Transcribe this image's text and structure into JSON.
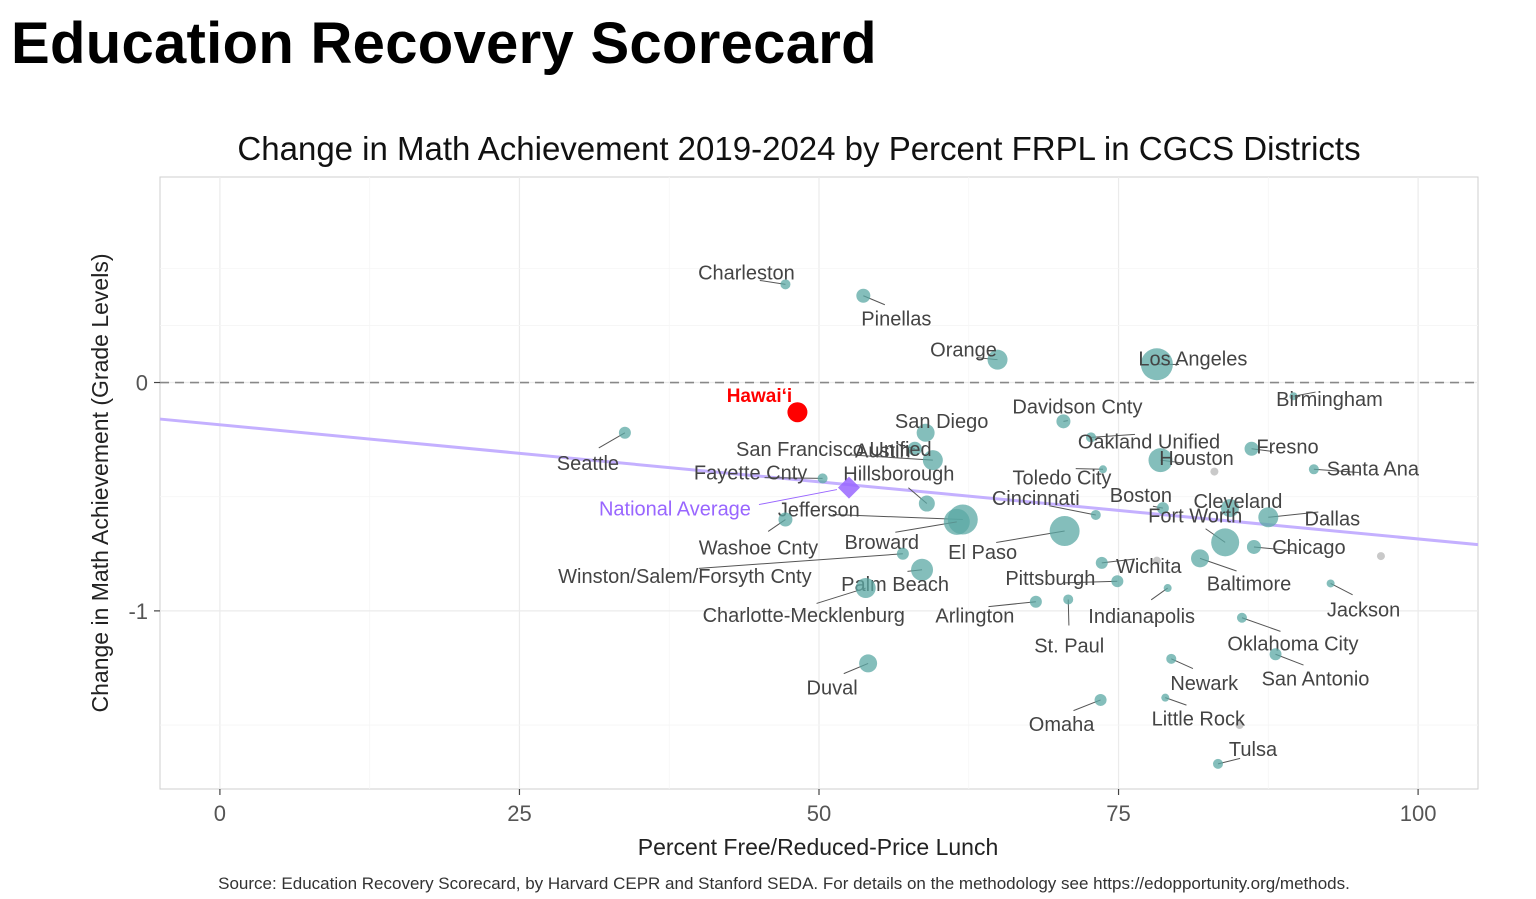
{
  "page": {
    "title": "Education Recovery Scorecard"
  },
  "chart_data": {
    "type": "scatter",
    "title": "Change in Math Achievement 2019-2024 by Percent FRPL in CGCS Districts",
    "xlabel": "Percent Free/Reduced-Price Lunch",
    "ylabel": "Change in Math Achievement (Grade Levels)",
    "xlim": [
      -5,
      105
    ],
    "ylim": [
      -1.78,
      0.9
    ],
    "xticks": [
      0,
      25,
      50,
      75,
      100
    ],
    "yticks": [
      0,
      -1
    ],
    "grid": true,
    "source": "Source: Education Recovery Scorecard, by Harvard CEPR and Stanford SEDA. For details on the methodology see https://edopportunity.org/methods.",
    "colors": {
      "district": "#5ba8a4",
      "hawaii": "#ff0000",
      "national": "#9966ff",
      "trend": "#c4b0ff",
      "unlabeled": "#bbbbbb",
      "zero_line": "#888888"
    },
    "trend_line": {
      "x": [
        -5,
        105
      ],
      "y": [
        -0.16,
        -0.71
      ]
    },
    "zero_line": 0,
    "national_average": {
      "label": "National Average",
      "x": 52.5,
      "y": -0.46
    },
    "hawaii": {
      "label": "Hawai‘i",
      "x": 48.2,
      "y": -0.13
    },
    "series": [
      {
        "name": "Charleston",
        "x": 47.2,
        "y": 0.43,
        "size": 5
      },
      {
        "name": "Pinellas",
        "x": 53.7,
        "y": 0.38,
        "size": 7
      },
      {
        "name": "Orange",
        "x": 64.9,
        "y": 0.1,
        "size": 10
      },
      {
        "name": "Los Angeles",
        "x": 78.2,
        "y": 0.08,
        "size": 16
      },
      {
        "name": "Birmingham",
        "x": 89.6,
        "y": -0.06,
        "size": 4
      },
      {
        "name": "Davidson Cnty",
        "x": 70.4,
        "y": -0.17,
        "size": 7
      },
      {
        "name": "Oakland Unified",
        "x": 72.7,
        "y": -0.24,
        "size": 5
      },
      {
        "name": "Fresno",
        "x": 86.1,
        "y": -0.29,
        "size": 7
      },
      {
        "name": "San Diego",
        "x": 58.9,
        "y": -0.22,
        "size": 9
      },
      {
        "name": "Seattle",
        "x": 33.8,
        "y": -0.22,
        "size": 6
      },
      {
        "name": "Austin",
        "x": 58.0,
        "y": -0.29,
        "size": 7
      },
      {
        "name": "San Francisco Unified",
        "x": 59.5,
        "y": -0.34,
        "size": 10
      },
      {
        "name": "Toledo City",
        "x": 73.7,
        "y": -0.38,
        "size": 4
      },
      {
        "name": "Houston",
        "x": 78.5,
        "y": -0.34,
        "size": 12
      },
      {
        "name": "Santa Ana",
        "x": 91.3,
        "y": -0.38,
        "size": 5
      },
      {
        "name": "Fayette Cnty",
        "x": 50.3,
        "y": -0.42,
        "size": 5
      },
      {
        "name": "Hillsborough",
        "x": 59.0,
        "y": -0.53,
        "size": 8
      },
      {
        "name": "Cincinnati",
        "x": 73.1,
        "y": -0.58,
        "size": 5
      },
      {
        "name": "Boston",
        "x": 78.7,
        "y": -0.55,
        "size": 6
      },
      {
        "name": "Cleveland",
        "x": 84.3,
        "y": -0.55,
        "size": 9
      },
      {
        "name": "Dallas",
        "x": 87.5,
        "y": -0.59,
        "size": 10
      },
      {
        "name": "Jefferson",
        "x": 62.0,
        "y": -0.6,
        "size": 15
      },
      {
        "name": "Washoe Cnty",
        "x": 47.2,
        "y": -0.6,
        "size": 7
      },
      {
        "name": "Broward",
        "x": 61.5,
        "y": -0.61,
        "size": 13
      },
      {
        "name": "El Paso",
        "x": 70.5,
        "y": -0.65,
        "size": 15
      },
      {
        "name": "Fort Worth",
        "x": 83.9,
        "y": -0.7,
        "size": 14
      },
      {
        "name": "Chicago",
        "x": 86.3,
        "y": -0.72,
        "size": 7
      },
      {
        "name": "Wichita",
        "x": 73.6,
        "y": -0.79,
        "size": 6
      },
      {
        "name": "Baltimore",
        "x": 81.8,
        "y": -0.77,
        "size": 9
      },
      {
        "name": "Winston/Salem/Forsyth Cnty",
        "x": 57.0,
        "y": -0.75,
        "size": 6
      },
      {
        "name": "Palm Beach",
        "x": 58.6,
        "y": -0.82,
        "size": 11
      },
      {
        "name": "Pittsburgh",
        "x": 74.9,
        "y": -0.87,
        "size": 6
      },
      {
        "name": "Indianapolis",
        "x": 79.1,
        "y": -0.9,
        "size": 4
      },
      {
        "name": "Jackson",
        "x": 92.7,
        "y": -0.88,
        "size": 4
      },
      {
        "name": "Charlotte-Mecklenburg",
        "x": 53.9,
        "y": -0.9,
        "size": 10
      },
      {
        "name": "Arlington",
        "x": 68.1,
        "y": -0.96,
        "size": 6
      },
      {
        "name": "St. Paul",
        "x": 70.8,
        "y": -0.95,
        "size": 5
      },
      {
        "name": "Oklahoma City",
        "x": 85.3,
        "y": -1.03,
        "size": 5
      },
      {
        "name": "San Antonio",
        "x": 88.1,
        "y": -1.19,
        "size": 6
      },
      {
        "name": "Newark",
        "x": 79.4,
        "y": -1.21,
        "size": 5
      },
      {
        "name": "Duval",
        "x": 54.1,
        "y": -1.23,
        "size": 9
      },
      {
        "name": "Omaha",
        "x": 73.5,
        "y": -1.39,
        "size": 6
      },
      {
        "name": "Little Rock",
        "x": 78.9,
        "y": -1.38,
        "size": 4
      },
      {
        "name": "Tulsa",
        "x": 83.3,
        "y": -1.67,
        "size": 5
      }
    ],
    "unlabeled_points": [
      {
        "x": 96.9,
        "y": -0.76
      },
      {
        "x": 85.1,
        "y": -1.5
      },
      {
        "x": 78.2,
        "y": -0.78
      },
      {
        "x": 83.0,
        "y": -0.39
      }
    ]
  }
}
